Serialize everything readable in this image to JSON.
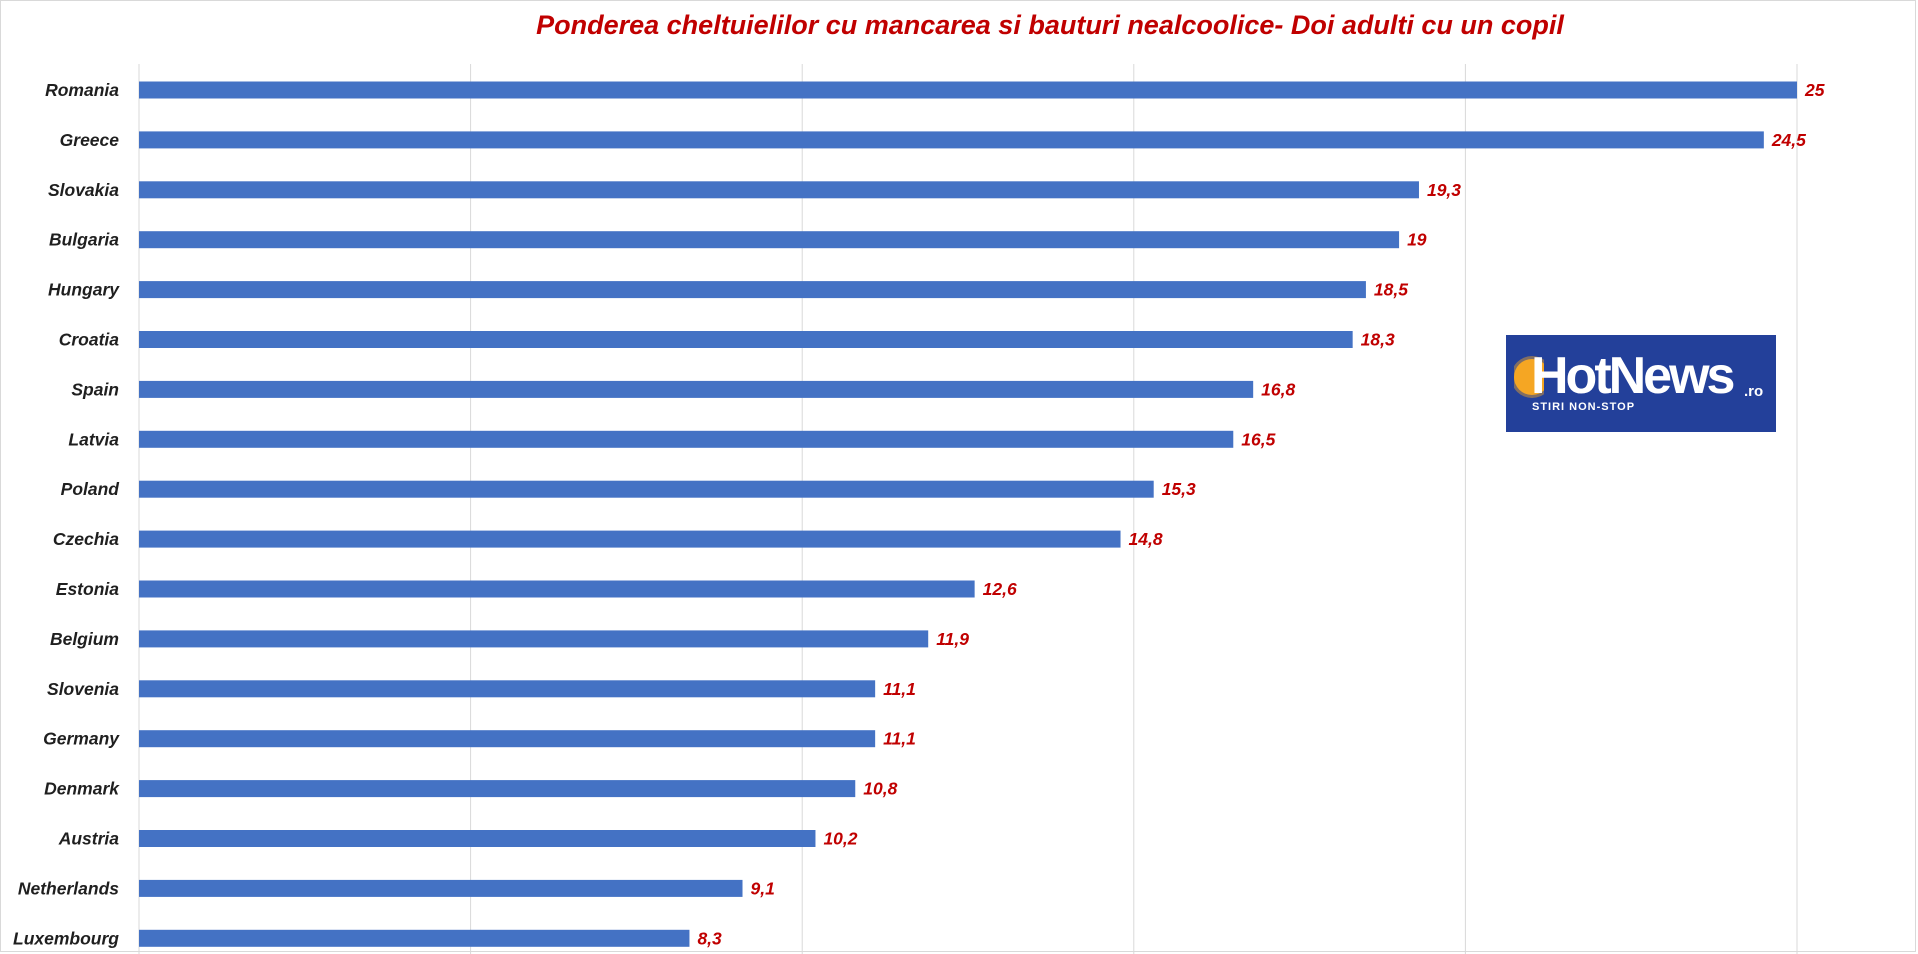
{
  "chart_data": {
    "type": "bar",
    "orientation": "horizontal",
    "title": "Ponderea cheltuielilor cu mancarea si bauturi nealcoolice- Doi adulti cu un copil",
    "categories": [
      "Romania",
      "Greece",
      "Slovakia",
      "Bulgaria",
      "Hungary",
      "Croatia",
      "Spain",
      "Latvia",
      "Poland",
      "Czechia",
      "Estonia",
      "Belgium",
      "Slovenia",
      "Germany",
      "Denmark",
      "Austria",
      "Netherlands",
      "Luxembourg"
    ],
    "values": [
      25,
      24.5,
      19.3,
      19,
      18.5,
      18.3,
      16.8,
      16.5,
      15.3,
      14.8,
      12.6,
      11.9,
      11.1,
      11.1,
      10.8,
      10.2,
      9.1,
      8.3
    ],
    "value_labels": [
      "25",
      "24,5",
      "19,3",
      "19",
      "18,5",
      "18,3",
      "16,8",
      "16,5",
      "15,3",
      "14,8",
      "12,6",
      "11,9",
      "11,1",
      "11,1",
      "10,8",
      "10,2",
      "9,1",
      "8,3"
    ],
    "xlim": [
      0,
      25
    ],
    "gridlines": [
      0,
      5,
      10,
      15,
      20,
      25
    ],
    "grid": true,
    "legend": "none",
    "colors": {
      "bar": "#4472c4",
      "value_label": "#c00000",
      "title": "#c00000",
      "grid": "#d9d9d9"
    }
  },
  "logo": {
    "name": "hotnews-logo",
    "brand": "HotNews",
    "suffix": ".ro",
    "tagline": "STIRI NON-STOP",
    "background": "#23409a",
    "sun_color": "#f5a623"
  }
}
